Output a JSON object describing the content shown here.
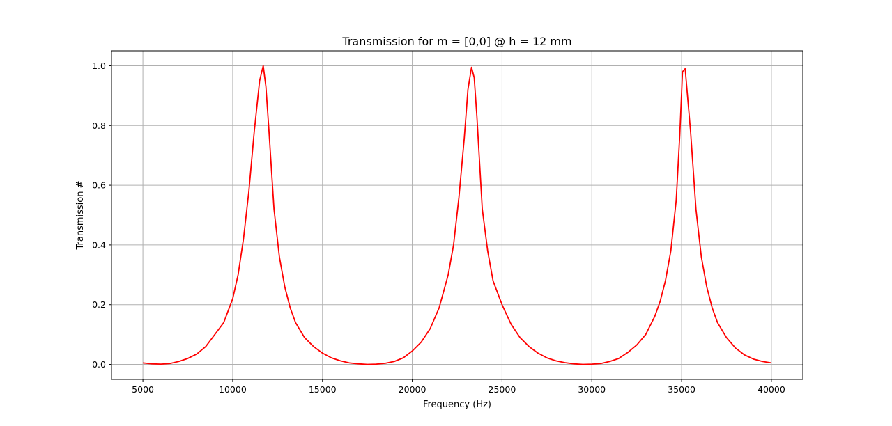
{
  "chart_data": {
    "type": "line",
    "title": "Transmission for m = [0,0] @ h = 12 mm",
    "xlabel": "Frequency (Hz)",
    "ylabel": "Transmission #",
    "xlim": [
      3250,
      41750
    ],
    "ylim": [
      -0.05,
      1.05
    ],
    "xticks": [
      5000,
      10000,
      15000,
      20000,
      25000,
      30000,
      35000,
      40000
    ],
    "xtick_labels": [
      "5000",
      "10000",
      "15000",
      "20000",
      "25000",
      "30000",
      "35000",
      "40000"
    ],
    "yticks": [
      0.0,
      0.2,
      0.4,
      0.6,
      0.8,
      1.0
    ],
    "ytick_labels": [
      "0.0",
      "0.2",
      "0.4",
      "0.6",
      "0.8",
      "1.0"
    ],
    "grid": true,
    "series": [
      {
        "color": "#ff0000",
        "x": [
          5000,
          5500,
          6000,
          6500,
          7000,
          7500,
          8000,
          8500,
          9000,
          9500,
          10000,
          10300,
          10600,
          10900,
          11200,
          11500,
          11700,
          11850,
          12000,
          12300,
          12600,
          12900,
          13200,
          13500,
          14000,
          14500,
          15000,
          15500,
          16000,
          16500,
          17000,
          17500,
          18000,
          18500,
          19000,
          19500,
          20000,
          20500,
          21000,
          21500,
          22000,
          22300,
          22600,
          22900,
          23100,
          23300,
          23450,
          23600,
          23900,
          24200,
          24500,
          25000,
          25500,
          26000,
          26500,
          27000,
          27500,
          28000,
          28500,
          29000,
          29500,
          30000,
          30500,
          31000,
          31500,
          32000,
          32500,
          33000,
          33500,
          33800,
          34100,
          34400,
          34700,
          34900,
          35050,
          35200,
          35500,
          35800,
          36100,
          36400,
          36700,
          37000,
          37500,
          38000,
          38500,
          39000,
          39500,
          40000
        ],
        "y": [
          0.005,
          0.002,
          0.001,
          0.003,
          0.01,
          0.02,
          0.035,
          0.06,
          0.1,
          0.14,
          0.22,
          0.3,
          0.42,
          0.58,
          0.78,
          0.95,
          1.0,
          0.93,
          0.8,
          0.52,
          0.36,
          0.26,
          0.19,
          0.14,
          0.09,
          0.06,
          0.038,
          0.022,
          0.012,
          0.005,
          0.002,
          0.0,
          0.001,
          0.004,
          0.01,
          0.022,
          0.045,
          0.075,
          0.12,
          0.19,
          0.3,
          0.4,
          0.56,
          0.76,
          0.92,
          0.995,
          0.96,
          0.83,
          0.52,
          0.38,
          0.28,
          0.2,
          0.135,
          0.09,
          0.06,
          0.038,
          0.022,
          0.012,
          0.006,
          0.002,
          0.0,
          0.001,
          0.003,
          0.01,
          0.02,
          0.04,
          0.065,
          0.1,
          0.16,
          0.21,
          0.28,
          0.38,
          0.55,
          0.77,
          0.98,
          0.99,
          0.78,
          0.52,
          0.36,
          0.26,
          0.19,
          0.14,
          0.09,
          0.055,
          0.032,
          0.018,
          0.01,
          0.005
        ]
      }
    ]
  }
}
